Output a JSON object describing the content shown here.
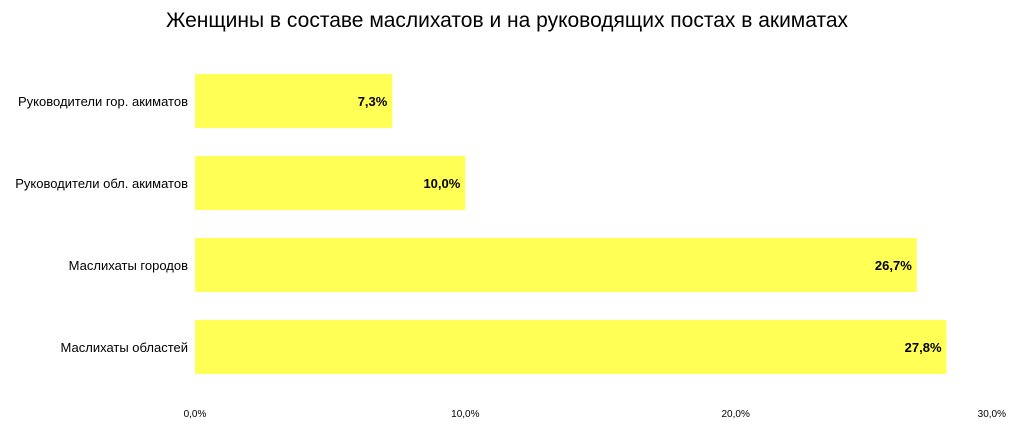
{
  "chart_data": {
    "type": "bar",
    "orientation": "horizontal",
    "title": "Женщины в составе маслихатов и на руководящих постах в акиматах",
    "categories": [
      "Руководители гор. акиматов",
      "Руководители обл. акиматов",
      "Маслихаты городов",
      "Маслихаты областей"
    ],
    "values": [
      7.3,
      10.0,
      26.7,
      27.8
    ],
    "value_labels": [
      "7,3%",
      "10,0%",
      "26,7%",
      "27,8%"
    ],
    "xlim": [
      0,
      30
    ],
    "x_ticks": [
      0,
      10,
      20,
      30
    ],
    "x_tick_labels": [
      "0,0%",
      "10,0%",
      "20,0%",
      "30,0%"
    ],
    "bar_color": "#FFFF55",
    "grid": false,
    "xlabel": "",
    "ylabel": ""
  }
}
